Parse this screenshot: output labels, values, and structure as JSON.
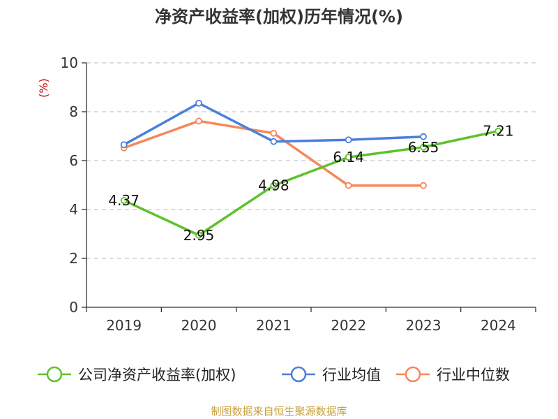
{
  "chart_data": {
    "type": "line",
    "title": "净资产收益率(加权)历年情况(%)",
    "ylabel": "(%)",
    "xlabel": "",
    "categories": [
      "2019",
      "2020",
      "2021",
      "2022",
      "2023",
      "2024"
    ],
    "ylim": [
      0,
      10
    ],
    "yticks": [
      0,
      2,
      4,
      6,
      8,
      10
    ],
    "grid": true,
    "legend_position": "bottom",
    "series": [
      {
        "name": "公司净资产收益率(加权)",
        "color": "#5ec22b",
        "values": [
          4.37,
          2.95,
          4.98,
          6.14,
          6.55,
          7.21
        ],
        "show_labels": true
      },
      {
        "name": "行业均值",
        "color": "#4a7fdb",
        "values": [
          6.65,
          8.35,
          6.78,
          6.85,
          6.98,
          null
        ],
        "show_labels": false
      },
      {
        "name": "行业中位数",
        "color": "#f5885a",
        "values": [
          6.52,
          7.62,
          7.12,
          4.98,
          4.98,
          null
        ],
        "show_labels": false
      }
    ],
    "source": "制图数据来自恒生聚源数据库"
  }
}
